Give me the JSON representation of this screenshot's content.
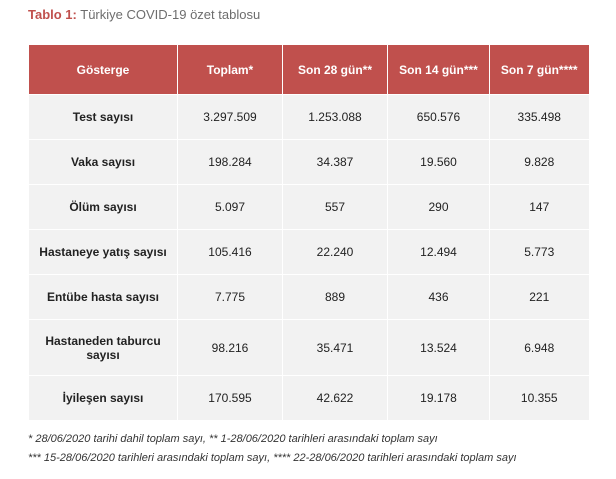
{
  "header": {
    "title_label": "Tablo 1:",
    "title_text": "Türkiye COVID-19 özet tablosu"
  },
  "table": {
    "columns": [
      "Gösterge",
      "Toplam*",
      "Son 28 gün**",
      "Son 14 gün***",
      "Son 7 gün****"
    ],
    "rows": [
      [
        "Test sayısı",
        "3.297.509",
        "1.253.088",
        "650.576",
        "335.498"
      ],
      [
        "Vaka sayısı",
        "198.284",
        "34.387",
        "19.560",
        "9.828"
      ],
      [
        "Ölüm sayısı",
        "5.097",
        "557",
        "290",
        "147"
      ],
      [
        "Hastaneye yatış sayısı",
        "105.416",
        "22.240",
        "12.494",
        "5.773"
      ],
      [
        "Entübe hasta sayısı",
        "7.775",
        "889",
        "436",
        "221"
      ],
      [
        "Hastaneden taburcu sayısı",
        "98.216",
        "35.471",
        "13.524",
        "6.948"
      ],
      [
        "İyileşen sayısı",
        "170.595",
        "42.622",
        "19.178",
        "10.355"
      ]
    ]
  },
  "footnotes": [
    "* 28/06/2020 tarihi dahil toplam sayı,  ** 1-28/06/2020 tarihleri arasındaki toplam sayı",
    "*** 15-28/06/2020 tarihleri arasındaki toplam sayı, **** 22-28/06/2020 tarihleri arasındaki toplam sayı"
  ]
}
